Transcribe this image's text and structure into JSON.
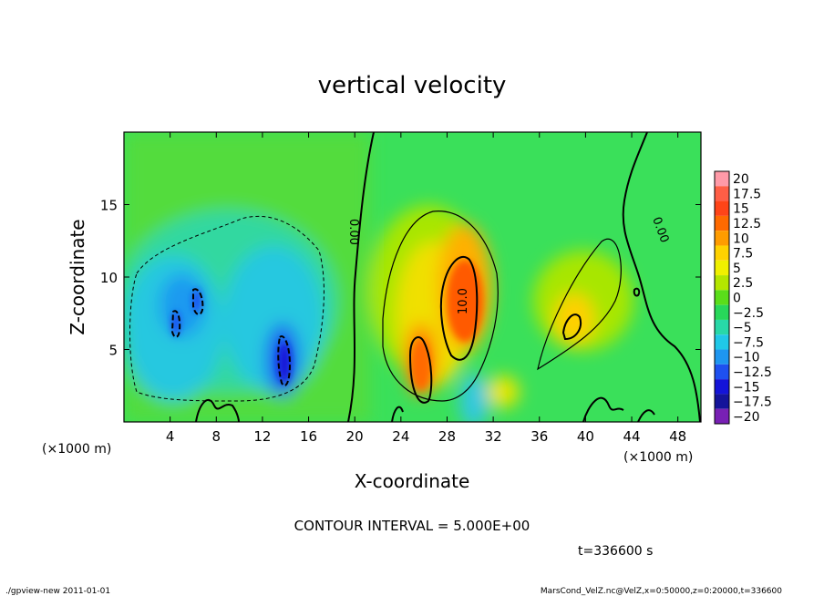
{
  "chart_data": {
    "type": "heatmap",
    "title": "vertical velocity",
    "xlabel": "X-coordinate",
    "ylabel": "Z-coordinate",
    "x_unit": "(×1000 m)",
    "x_unit_right": "(×1000 m)",
    "xlim": [
      0,
      50
    ],
    "ylim": [
      0,
      20
    ],
    "x_ticks": [
      4,
      8,
      12,
      16,
      20,
      24,
      28,
      32,
      36,
      40,
      44,
      48
    ],
    "y_ticks": [
      5,
      10,
      15
    ],
    "contour_interval_text": "CONTOUR INTERVAL = 5.000E+00",
    "contour_labels": [
      "0.00",
      "10.0",
      "0.00"
    ],
    "time_text": "t=336600 s",
    "footer_left": "./gpview-new   2011-01-01",
    "footer_right": "MarsCond_VelZ.nc@VelZ,x=0:50000,z=0:20000,t=336600",
    "colorbar": {
      "levels": [
        "20",
        "17.5",
        "15",
        "12.5",
        "10",
        "7.5",
        "5",
        "2.5",
        "0",
        "-2.5",
        "-5",
        "-7.5",
        "-10",
        "-12.5",
        "-15",
        "-17.5",
        "-20"
      ],
      "colors": [
        "#ff9aa8",
        "#ff5e46",
        "#ff4418",
        "#ff6a00",
        "#ff9c00",
        "#ffd200",
        "#f0f000",
        "#b4e600",
        "#5ade1a",
        "#28d85a",
        "#28d8a8",
        "#20c8e8",
        "#1e96f0",
        "#1e50f0",
        "#1414d8",
        "#14149a",
        "#7820b4"
      ]
    },
    "features": [
      {
        "kind": "updraft",
        "x": 29.5,
        "z": 7.5,
        "w": 15
      },
      {
        "kind": "updraft",
        "x": 26,
        "z": 4.2,
        "w": 12
      },
      {
        "kind": "updraft",
        "x": 38.5,
        "z": 6.5,
        "w": 10
      },
      {
        "kind": "downdraft",
        "x": 14,
        "z": 4,
        "w": -10
      },
      {
        "kind": "downdraft",
        "x": 5,
        "z": 7.5,
        "w": -8
      },
      {
        "kind": "downdraft",
        "x": 6.5,
        "z": 8.5,
        "w": -8
      }
    ]
  }
}
